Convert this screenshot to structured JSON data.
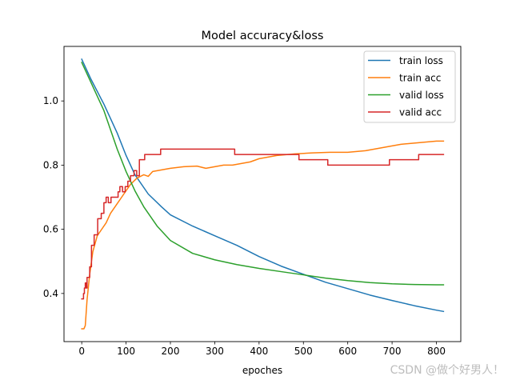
{
  "chart_data": {
    "type": "line",
    "title": "Model accuracy&loss",
    "xlabel": "epoches",
    "ylabel": "",
    "xlim": [
      -40,
      855
    ],
    "ylim": [
      0.25,
      1.17
    ],
    "xticks": [
      0,
      100,
      200,
      300,
      400,
      500,
      600,
      700,
      800
    ],
    "yticks": [
      0.4,
      0.6,
      0.8,
      1.0
    ],
    "xtick_labels": [
      "0",
      "100",
      "200",
      "300",
      "400",
      "500",
      "600",
      "700",
      "800"
    ],
    "ytick_labels": [
      "0.4",
      "0.6",
      "0.8",
      "1.0"
    ],
    "grid": false,
    "legend_position": "top-right",
    "series": [
      {
        "name": "train loss",
        "color": "#1f77b4",
        "step": false,
        "x": [
          0,
          20,
          50,
          80,
          100,
          120,
          150,
          180,
          200,
          250,
          300,
          350,
          400,
          450,
          500,
          550,
          600,
          650,
          700,
          750,
          800,
          816
        ],
        "y": [
          1.13,
          1.07,
          0.99,
          0.9,
          0.83,
          0.77,
          0.71,
          0.67,
          0.645,
          0.61,
          0.58,
          0.55,
          0.515,
          0.485,
          0.46,
          0.435,
          0.415,
          0.395,
          0.378,
          0.362,
          0.348,
          0.344
        ]
      },
      {
        "name": "train acc",
        "color": "#ff7f0e",
        "step": false,
        "x": [
          0,
          5,
          8,
          12,
          18,
          25,
          35,
          45,
          55,
          65,
          80,
          95,
          110,
          125,
          140,
          150,
          160,
          180,
          200,
          230,
          260,
          280,
          300,
          320,
          340,
          360,
          380,
          400,
          440,
          480,
          520,
          560,
          600,
          640,
          680,
          720,
          760,
          800,
          816
        ],
        "y": [
          0.29,
          0.29,
          0.3,
          0.38,
          0.46,
          0.53,
          0.58,
          0.6,
          0.62,
          0.65,
          0.68,
          0.71,
          0.74,
          0.76,
          0.77,
          0.765,
          0.78,
          0.785,
          0.79,
          0.795,
          0.797,
          0.79,
          0.795,
          0.8,
          0.8,
          0.805,
          0.81,
          0.82,
          0.83,
          0.835,
          0.838,
          0.84,
          0.84,
          0.845,
          0.855,
          0.865,
          0.87,
          0.875,
          0.875
        ]
      },
      {
        "name": "valid loss",
        "color": "#2ca02c",
        "step": false,
        "x": [
          0,
          20,
          50,
          80,
          100,
          120,
          140,
          170,
          200,
          250,
          300,
          350,
          400,
          450,
          500,
          550,
          600,
          650,
          700,
          750,
          800,
          816
        ],
        "y": [
          1.12,
          1.06,
          0.97,
          0.85,
          0.78,
          0.72,
          0.67,
          0.61,
          0.565,
          0.525,
          0.505,
          0.49,
          0.478,
          0.468,
          0.458,
          0.448,
          0.44,
          0.434,
          0.43,
          0.428,
          0.427,
          0.427
        ]
      },
      {
        "name": "valid acc",
        "color": "#d62728",
        "step": true,
        "x": [
          0,
          4,
          6,
          8,
          10,
          12,
          18,
          22,
          28,
          36,
          44,
          50,
          55,
          60,
          66,
          72,
          78,
          82,
          86,
          92,
          98,
          104,
          110,
          118,
          124,
          130,
          142,
          160,
          178,
          200,
          260,
          300,
          345,
          400,
          450,
          490,
          520,
          555,
          600,
          650,
          694,
          720,
          760,
          800,
          816
        ],
        "y": [
          0.383,
          0.4,
          0.417,
          0.433,
          0.417,
          0.45,
          0.483,
          0.55,
          0.583,
          0.633,
          0.65,
          0.683,
          0.7,
          0.683,
          0.7,
          0.7,
          0.7,
          0.717,
          0.733,
          0.717,
          0.733,
          0.75,
          0.767,
          0.783,
          0.767,
          0.817,
          0.833,
          0.833,
          0.85,
          0.85,
          0.85,
          0.85,
          0.833,
          0.833,
          0.833,
          0.817,
          0.817,
          0.8,
          0.8,
          0.8,
          0.817,
          0.817,
          0.833,
          0.833,
          0.833
        ]
      }
    ]
  },
  "watermark": "CSDN @做个好男人！"
}
